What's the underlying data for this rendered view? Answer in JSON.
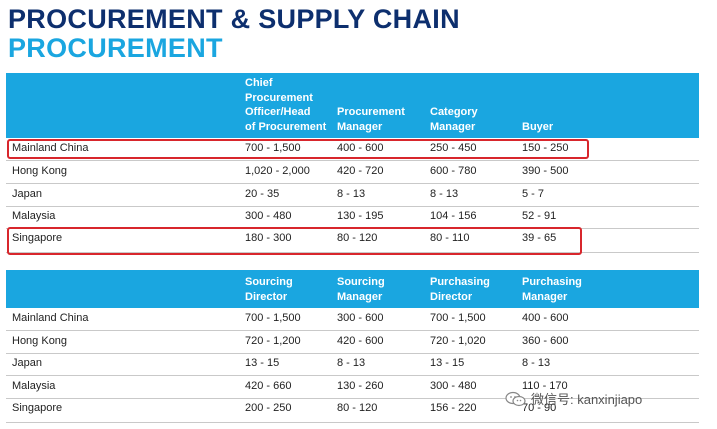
{
  "title_primary": "PROCUREMENT & SUPPLY CHAIN",
  "title_secondary": "PROCUREMENT",
  "table1": {
    "headers": [
      "",
      "Chief\nProcurement\nOfficer/Head\nof Procurement",
      "Procurement\nManager",
      "Category\nManager",
      "Buyer"
    ],
    "rows": [
      [
        "Mainland China",
        "700 - 1,500",
        "400 - 600",
        "250 - 450",
        "150 - 250"
      ],
      [
        "Hong Kong",
        "1,020 - 2,000",
        "420 - 720",
        "600 - 780",
        "390 - 500"
      ],
      [
        "Japan",
        "20 - 35",
        "8 - 13",
        "8 - 13",
        "5 - 7"
      ],
      [
        "Malaysia",
        "300 - 480",
        "130 - 195",
        "104 - 156",
        "52 - 91"
      ],
      [
        "Singapore",
        "180 - 300",
        "80 - 120",
        "80 - 110",
        "39 - 65"
      ]
    ]
  },
  "table2": {
    "headers": [
      "",
      "Sourcing\nDirector",
      "Sourcing\nManager",
      "Purchasing\nDirector",
      "Purchasing\nManager"
    ],
    "rows": [
      [
        "Mainland China",
        "700 - 1,500",
        "300 - 600",
        "700 - 1,500",
        "400 - 600"
      ],
      [
        "Hong Kong",
        "720 - 1,200",
        "420 - 600",
        "720 - 1,020",
        "360 - 600"
      ],
      [
        "Japan",
        "13 - 15",
        "8 - 13",
        "13 - 15",
        "8 - 13"
      ],
      [
        "Malaysia",
        "420 - 660",
        "130 - 260",
        "300 - 480",
        "110 - 170"
      ],
      [
        "Singapore",
        "200 - 250",
        "80 - 120",
        "156 - 220",
        "70 - 90"
      ]
    ]
  },
  "watermark": {
    "text": "微信号: kanxinjiapo",
    "icon": "wechat-icon"
  },
  "colors": {
    "header_blue": "#1aa6e0",
    "title_navy": "#0d2f6e",
    "highlight_red": "#d8262c"
  }
}
